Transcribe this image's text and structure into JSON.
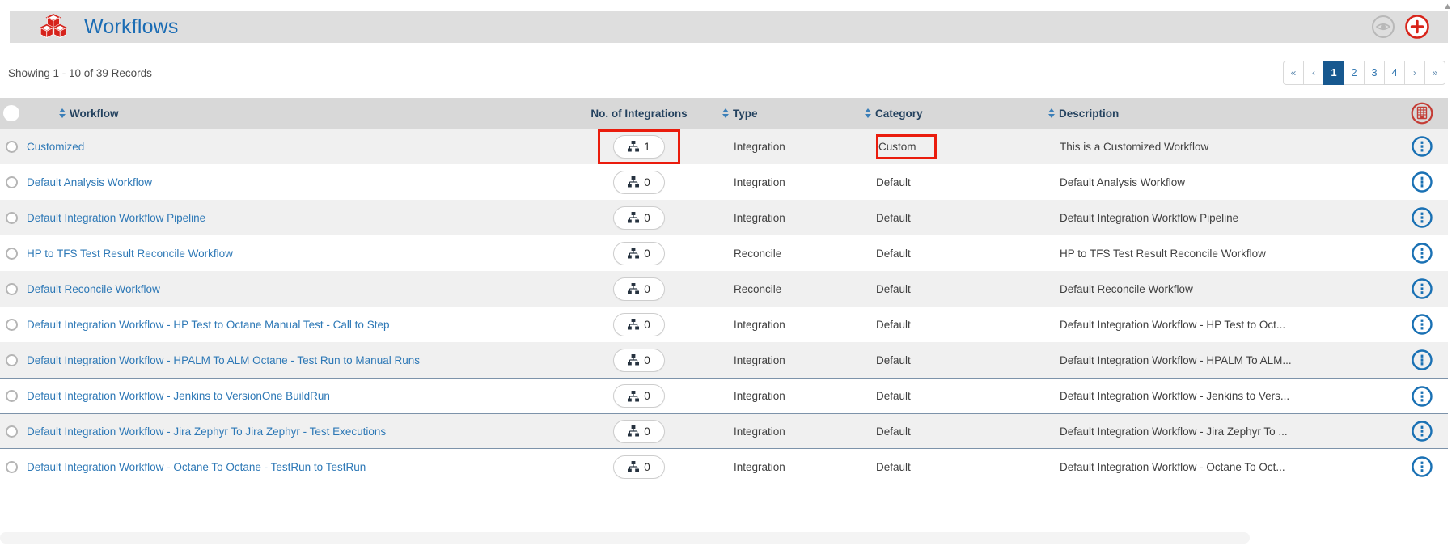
{
  "colors": {
    "titlebar_bg": "#dedede",
    "title_blue": "#1a6cb4",
    "brand_red": "#d6231c",
    "table_header_bg": "#d8d8d8",
    "header_text": "#24425f",
    "row_alt_bg": "#f0f0f0",
    "link_blue": "#2d78b6",
    "kebab_blue": "#1a71b4",
    "pagination_active_bg": "#17588f",
    "annotation_red": "#ea1c0d",
    "divider_slate": "#7d93aa"
  },
  "titlebar": {
    "title": "Workflows",
    "logo_icon": "cubes-icon",
    "view_button_icon": "eye-icon",
    "add_button_icon": "plus-icon"
  },
  "summary": {
    "text": "Showing 1 - 10 of 39 Records"
  },
  "pagination": {
    "buttons": [
      {
        "label": "«",
        "type": "first"
      },
      {
        "label": "‹",
        "type": "prev"
      },
      {
        "label": "1",
        "type": "page",
        "active": true
      },
      {
        "label": "2",
        "type": "page"
      },
      {
        "label": "3",
        "type": "page"
      },
      {
        "label": "4",
        "type": "page"
      },
      {
        "label": "›",
        "type": "next"
      },
      {
        "label": "»",
        "type": "last"
      }
    ]
  },
  "table": {
    "columns": [
      {
        "key": "workflow",
        "label": "Workflow",
        "sortable": true
      },
      {
        "key": "integrations",
        "label": "No. of Integrations",
        "sortable": false
      },
      {
        "key": "type",
        "label": "Type",
        "sortable": true
      },
      {
        "key": "category",
        "label": "Category",
        "sortable": true
      },
      {
        "key": "description",
        "label": "Description",
        "sortable": true
      }
    ],
    "rows": [
      {
        "workflow": "Customized",
        "integrations": "1",
        "type": "Integration",
        "category": "Custom",
        "description": "This is a Customized Workflow",
        "highlight_integrations": true,
        "highlight_category": true
      },
      {
        "workflow": "Default Analysis Workflow",
        "integrations": "0",
        "type": "Integration",
        "category": "Default",
        "description": "Default Analysis Workflow"
      },
      {
        "workflow": "Default Integration Workflow Pipeline",
        "integrations": "0",
        "type": "Integration",
        "category": "Default",
        "description": "Default Integration Workflow Pipeline"
      },
      {
        "workflow": "HP to TFS Test Result Reconcile Workflow",
        "integrations": "0",
        "type": "Reconcile",
        "category": "Default",
        "description": "HP to TFS Test Result Reconcile Workflow"
      },
      {
        "workflow": "Default Reconcile Workflow",
        "integrations": "0",
        "type": "Reconcile",
        "category": "Default",
        "description": "Default Reconcile Workflow"
      },
      {
        "workflow": "Default Integration Workflow - HP Test to Octane Manual Test - Call to Step",
        "integrations": "0",
        "type": "Integration",
        "category": "Default",
        "description": "Default Integration Workflow - HP Test to Oct..."
      },
      {
        "workflow": "Default Integration Workflow - HPALM To ALM Octane - Test Run to Manual Runs",
        "integrations": "0",
        "type": "Integration",
        "category": "Default",
        "description": "Default Integration Workflow - HPALM To ALM..."
      },
      {
        "workflow": "Default Integration Workflow - Jenkins to VersionOne BuildRun",
        "integrations": "0",
        "type": "Integration",
        "category": "Default",
        "description": "Default Integration Workflow - Jenkins to Vers...",
        "border_top": true
      },
      {
        "workflow": "Default Integration Workflow - Jira Zephyr To Jira Zephyr - Test Executions",
        "integrations": "0",
        "type": "Integration",
        "category": "Default",
        "description": "Default Integration Workflow - Jira Zephyr To ...",
        "border_top": true,
        "border_bottom": true
      },
      {
        "workflow": "Default Integration Workflow - Octane To Octane - TestRun to TestRun",
        "integrations": "0",
        "type": "Integration",
        "category": "Default",
        "description": "Default Integration Workflow - Octane To Oct..."
      }
    ],
    "row_icons": {
      "action_menu": "kebab-menu-icon",
      "header_action": "column-config-icon",
      "integration_badge": "sitemap-icon"
    }
  }
}
